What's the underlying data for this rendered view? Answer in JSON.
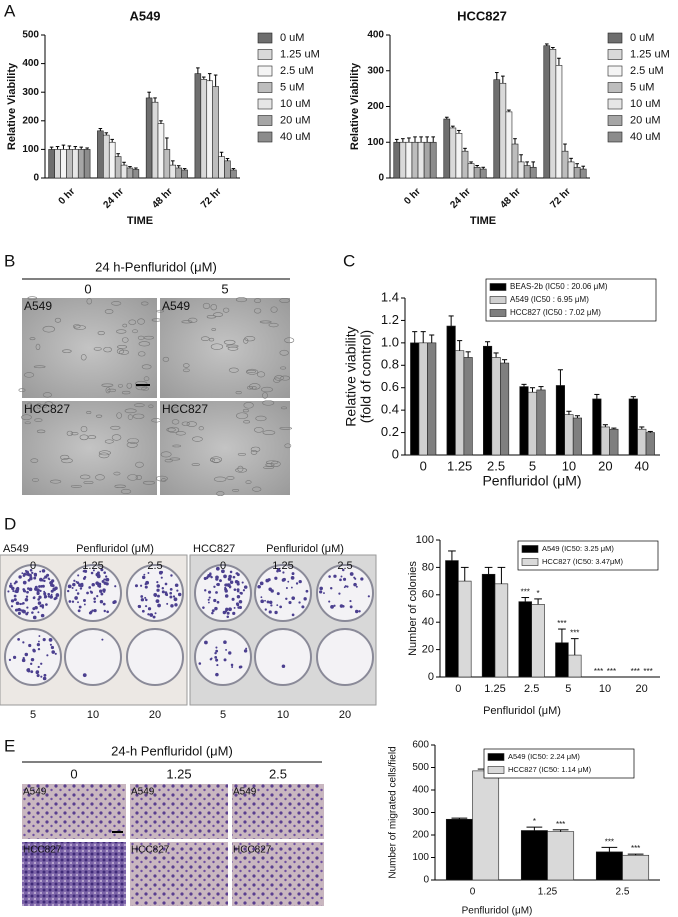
{
  "panels": [
    "A",
    "B",
    "C",
    "D",
    "E"
  ],
  "panel_b": {
    "title": "24 h-Penfluridol (μM)",
    "columns": [
      "0",
      "5"
    ],
    "images": [
      [
        "A549",
        "A549"
      ],
      [
        "HCC827",
        "HCC827"
      ]
    ]
  },
  "panel_d": {
    "plates": [
      {
        "cell": "A549",
        "title": "Penfluridol (μM)",
        "doses": [
          "0",
          "1.25",
          "2.5",
          "5",
          "10",
          "20"
        ]
      },
      {
        "cell": "HCC827",
        "title": "Penfluridol (μM)",
        "doses": [
          "0",
          "1.25",
          "2.5",
          "5",
          "10",
          "20"
        ]
      }
    ]
  },
  "panel_e": {
    "title": "24-h Penfluridol (μM)",
    "columns": [
      "0",
      "1.25",
      "2.5"
    ],
    "images": [
      [
        "A549",
        "A549",
        "A549"
      ],
      [
        "HCC827",
        "HCC827",
        "HCC827"
      ]
    ]
  },
  "chart_data": [
    {
      "type": "bar",
      "title": "A549",
      "x_label": "TIME",
      "y_label": "Relative Viability",
      "categories": [
        "0 hr",
        "24 hr",
        "48 hr",
        "72 hr"
      ],
      "ylim": [
        0,
        500
      ],
      "yticks": [
        0,
        100,
        200,
        300,
        400,
        500
      ],
      "series": [
        {
          "name": "0 uM",
          "color": "#6e6e6e",
          "values": [
            100,
            165,
            280,
            365
          ],
          "errors": [
            8,
            8,
            20,
            20
          ]
        },
        {
          "name": "1.25 uM",
          "color": "#d9d9d9",
          "values": [
            100,
            150,
            265,
            345
          ],
          "errors": [
            10,
            8,
            15,
            8
          ]
        },
        {
          "name": "2.5 uM",
          "color": "#f4f4f4",
          "values": [
            100,
            125,
            190,
            340
          ],
          "errors": [
            15,
            10,
            10,
            25
          ]
        },
        {
          "name": "5 uM",
          "color": "#bdbdbd",
          "values": [
            100,
            75,
            100,
            320
          ],
          "errors": [
            12,
            10,
            40,
            40
          ]
        },
        {
          "name": "10 uM",
          "color": "#e6e6e6",
          "values": [
            100,
            45,
            45,
            75
          ],
          "errors": [
            10,
            10,
            15,
            15
          ]
        },
        {
          "name": "20 uM",
          "color": "#a6a6a6",
          "values": [
            100,
            35,
            35,
            60
          ],
          "errors": [
            8,
            5,
            8,
            8
          ]
        },
        {
          "name": "40 uM",
          "color": "#8c8c8c",
          "values": [
            100,
            30,
            28,
            28
          ],
          "errors": [
            5,
            5,
            5,
            5
          ]
        }
      ]
    },
    {
      "type": "bar",
      "title": "HCC827",
      "x_label": "TIME",
      "y_label": "Relative Viability",
      "categories": [
        "0 hr",
        "24 hr",
        "48 hr",
        "72 hr"
      ],
      "ylim": [
        0,
        400
      ],
      "yticks": [
        0,
        100,
        200,
        300,
        400
      ],
      "series": [
        {
          "name": "0 uM",
          "color": "#6e6e6e",
          "values": [
            100,
            165,
            275,
            370
          ],
          "errors": [
            8,
            5,
            20,
            5
          ]
        },
        {
          "name": "1.25 uM",
          "color": "#d9d9d9",
          "values": [
            100,
            140,
            265,
            360
          ],
          "errors": [
            10,
            5,
            20,
            5
          ]
        },
        {
          "name": "2.5 uM",
          "color": "#f4f4f4",
          "values": [
            100,
            125,
            185,
            315
          ],
          "errors": [
            12,
            8,
            5,
            20
          ]
        },
        {
          "name": "5 uM",
          "color": "#bdbdbd",
          "values": [
            100,
            75,
            95,
            75
          ],
          "errors": [
            15,
            8,
            15,
            20
          ]
        },
        {
          "name": "10 uM",
          "color": "#e6e6e6",
          "values": [
            100,
            40,
            45,
            45
          ],
          "errors": [
            15,
            5,
            20,
            10
          ]
        },
        {
          "name": "20 uM",
          "color": "#a6a6a6",
          "values": [
            100,
            30,
            35,
            30
          ],
          "errors": [
            15,
            5,
            10,
            10
          ]
        },
        {
          "name": "40 uM",
          "color": "#8c8c8c",
          "values": [
            100,
            25,
            30,
            25
          ],
          "errors": [
            15,
            5,
            15,
            8
          ]
        }
      ]
    },
    {
      "type": "bar",
      "x_label": "Penfluridol (μM)",
      "y_label": [
        "Relative viability",
        "(fold of control)"
      ],
      "categories": [
        "0",
        "1.25",
        "2.5",
        "5",
        "10",
        "20",
        "40"
      ],
      "ylim": [
        0,
        1.4
      ],
      "yticks": [
        0,
        0.2,
        0.4,
        0.6,
        0.8,
        {
          "value": 1,
          "label": "1.0"
        },
        1.2,
        1.4
      ],
      "series": [
        {
          "name": "BEAS-2b (IC50 : 20.06 μM)",
          "color": "#000000",
          "values": [
            1.0,
            1.15,
            0.97,
            0.61,
            0.62,
            0.5,
            0.5
          ],
          "errors": [
            0.1,
            0.09,
            0.04,
            0.02,
            0.14,
            0.04,
            0.02
          ]
        },
        {
          "name": "A549 (IC50 : 6.95 μM)",
          "color": "#d0d0d0",
          "values": [
            1.0,
            0.93,
            0.87,
            0.56,
            0.36,
            0.25,
            0.23
          ],
          "errors": [
            0.1,
            0.09,
            0.04,
            0.04,
            0.03,
            0.02,
            0.02
          ]
        },
        {
          "name": "HCC827 (IC50 : 7.02 μM)",
          "color": "#7f7f7f",
          "values": [
            1.0,
            0.87,
            0.82,
            0.58,
            0.33,
            0.23,
            0.2
          ],
          "errors": [
            0.07,
            0.05,
            0.03,
            0.03,
            0.02,
            0.01,
            0.01
          ]
        }
      ]
    },
    {
      "type": "bar",
      "x_label": "Penfluridol (μM)",
      "y_label": "Number of colonies",
      "categories": [
        "0",
        "1.25",
        "2.5",
        "5",
        "10",
        "20"
      ],
      "ylim": [
        0,
        100
      ],
      "yticks": [
        0,
        20,
        40,
        60,
        80,
        100
      ],
      "series": [
        {
          "name": "A549 (IC50: 3.25 μM)",
          "color": "#000000",
          "values": [
            85,
            75,
            55,
            25,
            0,
            0
          ],
          "errors": [
            7,
            5,
            3,
            10,
            0,
            0
          ],
          "significance": [
            null,
            null,
            "***",
            "***",
            "***",
            "***"
          ]
        },
        {
          "name": "HCC827 (IC50: 3.47μM)",
          "color": "#d9d9d9",
          "values": [
            70,
            68,
            53,
            16,
            0,
            0
          ],
          "errors": [
            10,
            12,
            4,
            12,
            0,
            0
          ],
          "significance": [
            null,
            null,
            "*",
            "***",
            "***",
            "***"
          ]
        }
      ]
    },
    {
      "type": "bar",
      "x_label": "Penfluridol (μM)",
      "y_label": "Number of migrated cells/field",
      "categories": [
        "0",
        "1.25",
        "2.5"
      ],
      "ylim": [
        0,
        600
      ],
      "yticks": [
        0,
        100,
        200,
        300,
        400,
        500,
        600
      ],
      "series": [
        {
          "name": "A549 (IC50: 2.24 μM)",
          "color": "#000000",
          "values": [
            270,
            220,
            125
          ],
          "errors": [
            5,
            15,
            20
          ],
          "significance": [
            null,
            "*",
            "***"
          ]
        },
        {
          "name": "HCC827 (IC50: 1.14 μM)",
          "color": "#d9d9d9",
          "values": [
            485,
            215,
            110
          ],
          "errors": [
            8,
            8,
            5
          ],
          "significance": [
            null,
            "***",
            "***"
          ]
        }
      ]
    }
  ]
}
